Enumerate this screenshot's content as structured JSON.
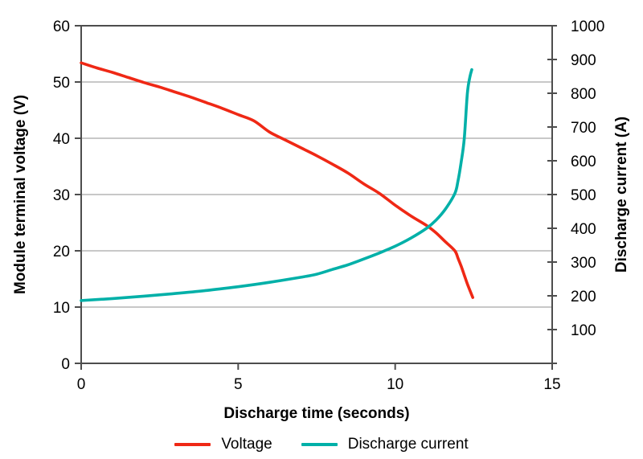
{
  "chart_data": {
    "type": "line",
    "title": "",
    "xlabel": "Discharge time (seconds)",
    "ylabel_left": "Module terminal voltage (V)",
    "ylabel_right": "Discharge current (A)",
    "xlim": [
      0,
      15
    ],
    "ylim_left": [
      0,
      60
    ],
    "ylim_right": [
      0,
      1000
    ],
    "x_ticks": [
      0,
      5,
      10,
      15
    ],
    "y_left_ticks": [
      0,
      10,
      20,
      30,
      40,
      50,
      60
    ],
    "y_right_ticks": [
      100,
      200,
      300,
      400,
      500,
      600,
      700,
      800,
      900,
      1000
    ],
    "grid": "horizontal",
    "legend_position": "bottom",
    "colors": {
      "axis": "#4d4d4d",
      "grid": "#a6a6a6",
      "text": "#000000",
      "background": "#ffffff"
    },
    "series": [
      {
        "name": "Voltage",
        "axis": "left",
        "color": "#ef2815",
        "points": [
          [
            0,
            53.4
          ],
          [
            0.5,
            52.5
          ],
          [
            1,
            51.7
          ],
          [
            1.5,
            50.8
          ],
          [
            2,
            49.9
          ],
          [
            2.5,
            49.1
          ],
          [
            3,
            48.2
          ],
          [
            3.5,
            47.3
          ],
          [
            4,
            46.3
          ],
          [
            4.5,
            45.3
          ],
          [
            5,
            44.2
          ],
          [
            5.5,
            43.1
          ],
          [
            6,
            41.1
          ],
          [
            6.5,
            39.7
          ],
          [
            7,
            38.3
          ],
          [
            7.5,
            36.9
          ],
          [
            8,
            35.4
          ],
          [
            8.5,
            33.8
          ],
          [
            9,
            31.9
          ],
          [
            9.5,
            30.2
          ],
          [
            10,
            28.1
          ],
          [
            10.5,
            26.2
          ],
          [
            11,
            24.5
          ],
          [
            11.3,
            23.2
          ],
          [
            11.6,
            21.6
          ],
          [
            11.9,
            20.0
          ],
          [
            12.0,
            18.7
          ],
          [
            12.1,
            17.3
          ],
          [
            12.2,
            15.7
          ],
          [
            12.3,
            14.1
          ],
          [
            12.4,
            12.7
          ],
          [
            12.47,
            11.7
          ]
        ]
      },
      {
        "name": "Discharge current",
        "axis": "right",
        "color": "#00b0a8",
        "points": [
          [
            0,
            186
          ],
          [
            1,
            192
          ],
          [
            2,
            199
          ],
          [
            3,
            207
          ],
          [
            4,
            216
          ],
          [
            5,
            227
          ],
          [
            6,
            240
          ],
          [
            7,
            255
          ],
          [
            7.5,
            264
          ],
          [
            8,
            278
          ],
          [
            8.5,
            292
          ],
          [
            9,
            309
          ],
          [
            9.5,
            327
          ],
          [
            10,
            347
          ],
          [
            10.5,
            371
          ],
          [
            11,
            400
          ],
          [
            11.3,
            424
          ],
          [
            11.6,
            457
          ],
          [
            11.9,
            503
          ],
          [
            12.0,
            540
          ],
          [
            12.1,
            595
          ],
          [
            12.2,
            665
          ],
          [
            12.3,
            800
          ],
          [
            12.38,
            848
          ],
          [
            12.44,
            870
          ]
        ]
      }
    ]
  },
  "legend": {
    "items": [
      {
        "label": "Voltage"
      },
      {
        "label": "Discharge current"
      }
    ]
  }
}
